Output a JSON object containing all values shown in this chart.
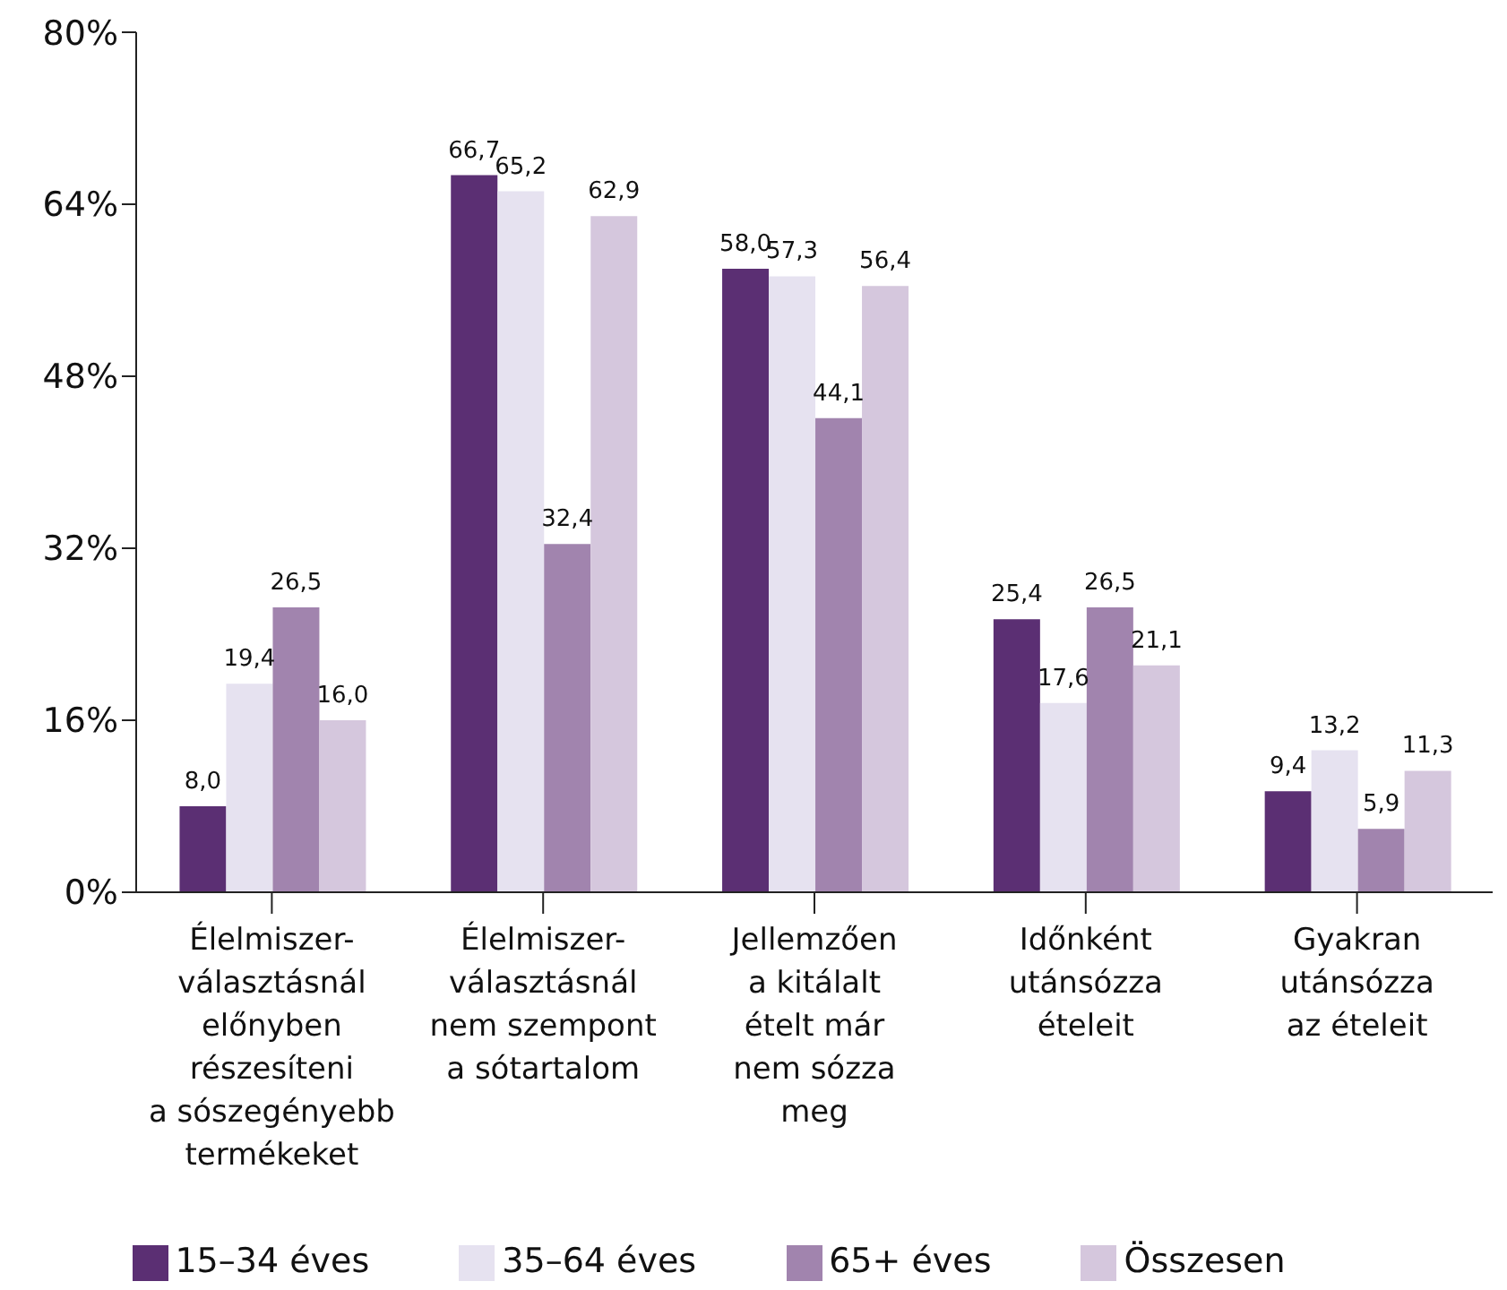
{
  "chart_data": {
    "type": "bar",
    "categories": [
      "Élelmiszer-\nválasztásnál\nelőnyben\nrészesíteni\na sószegényebb\ntermékeket",
      "Élelmiszer-\nválasztásnál\nnem szempont\na sótartalom",
      "Jellemzően\na kitálalt\nételt már\nnem sózza\nmeg",
      "Időnként\nutánsózza\nételeit",
      "Gyakran\nutánsózza\naz ételeit"
    ],
    "series": [
      {
        "name": "15–34 éves",
        "color": "#5b2f73",
        "values": [
          8.0,
          66.7,
          58.0,
          25.4,
          9.4
        ],
        "value_labels": [
          "8,0",
          "66,7",
          "58,0",
          "25,4",
          "9,4"
        ]
      },
      {
        "name": "35–64 éves",
        "color": "#e6e2f0",
        "values": [
          19.4,
          65.2,
          57.3,
          17.6,
          13.2
        ],
        "value_labels": [
          "19,4",
          "65,2",
          "57,3",
          "17,6",
          "13,2"
        ]
      },
      {
        "name": "65+ éves",
        "color": "#a184ae",
        "values": [
          26.5,
          32.4,
          44.1,
          26.5,
          5.9
        ],
        "value_labels": [
          "26,5",
          "32,4",
          "44,1",
          "26,5",
          "5,9"
        ]
      },
      {
        "name": "Összesen",
        "color": "#d5c7dd",
        "values": [
          16.0,
          62.9,
          56.4,
          21.1,
          11.3
        ],
        "value_labels": [
          "16,0",
          "62,9",
          "56,4",
          "21,1",
          "11,3"
        ]
      }
    ],
    "ylim": [
      0,
      80
    ],
    "yticks": [
      {
        "value": 0,
        "label": "0%"
      },
      {
        "value": 16,
        "label": "16%"
      },
      {
        "value": 32,
        "label": "32%"
      },
      {
        "value": 48,
        "label": "48%"
      },
      {
        "value": 64,
        "label": "64%"
      },
      {
        "value": 80,
        "label": "80%"
      }
    ],
    "grid": false,
    "legend": "bottom"
  }
}
